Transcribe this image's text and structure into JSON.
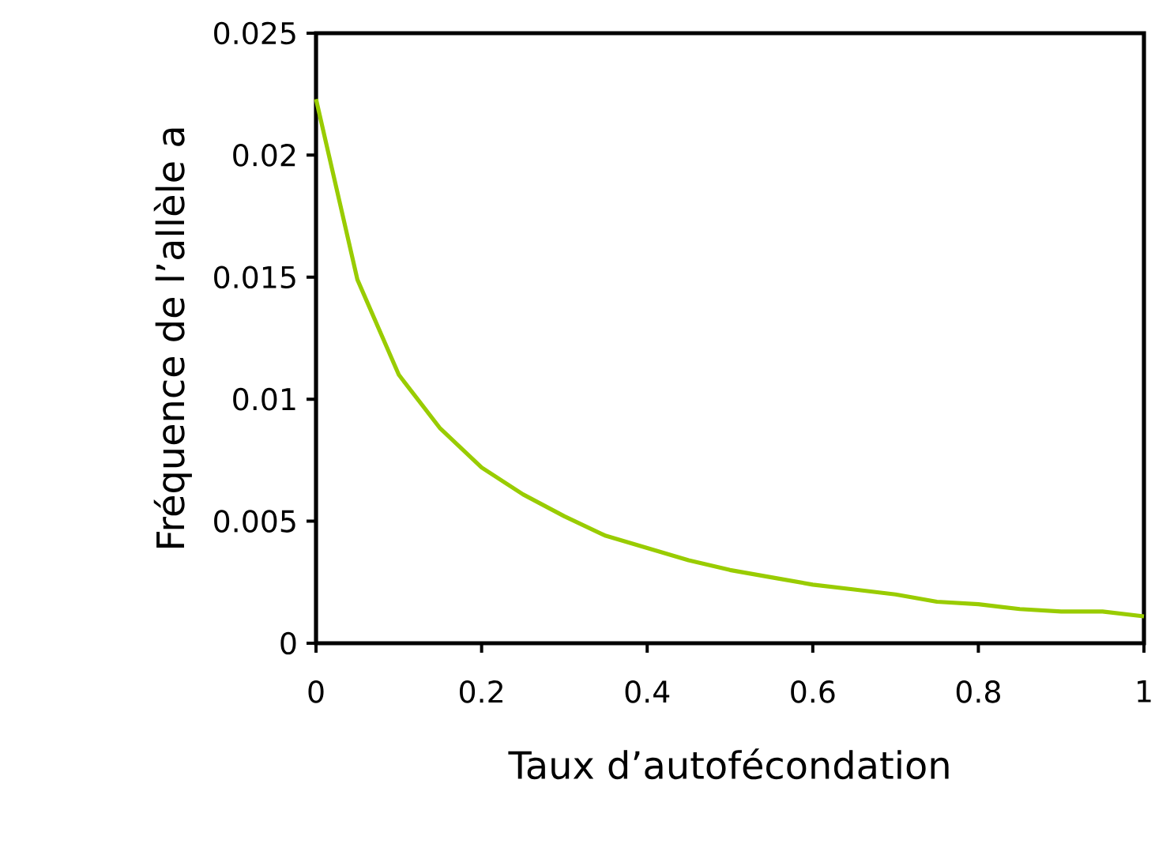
{
  "chart_data": {
    "type": "line",
    "xlabel": "Taux d’autofécondation",
    "ylabel": "Fréquence de l’allèle a",
    "x": [
      0,
      0.05,
      0.1,
      0.15,
      0.2,
      0.25,
      0.3,
      0.35,
      0.4,
      0.45,
      0.5,
      0.55,
      0.6,
      0.65,
      0.7,
      0.75,
      0.8,
      0.85,
      0.9,
      0.95,
      1
    ],
    "series": [
      {
        "color": "#99cc00",
        "values": [
          0.0223,
          0.0149,
          0.011,
          0.0088,
          0.0072,
          0.0061,
          0.0052,
          0.0044,
          0.0039,
          0.0034,
          0.003,
          0.0027,
          0.0024,
          0.0022,
          0.002,
          0.0017,
          0.0016,
          0.0014,
          0.0013,
          0.0013,
          0.0011
        ]
      }
    ],
    "xlim": [
      0,
      1
    ],
    "ylim": [
      0,
      0.025
    ],
    "xticks": [
      0,
      0.2,
      0.4,
      0.6,
      0.8,
      1
    ],
    "yticks": [
      0,
      0.005,
      0.01,
      0.015,
      0.02,
      0.025
    ],
    "grid": false,
    "legend": false,
    "marker": "none",
    "line_style": "solid"
  }
}
